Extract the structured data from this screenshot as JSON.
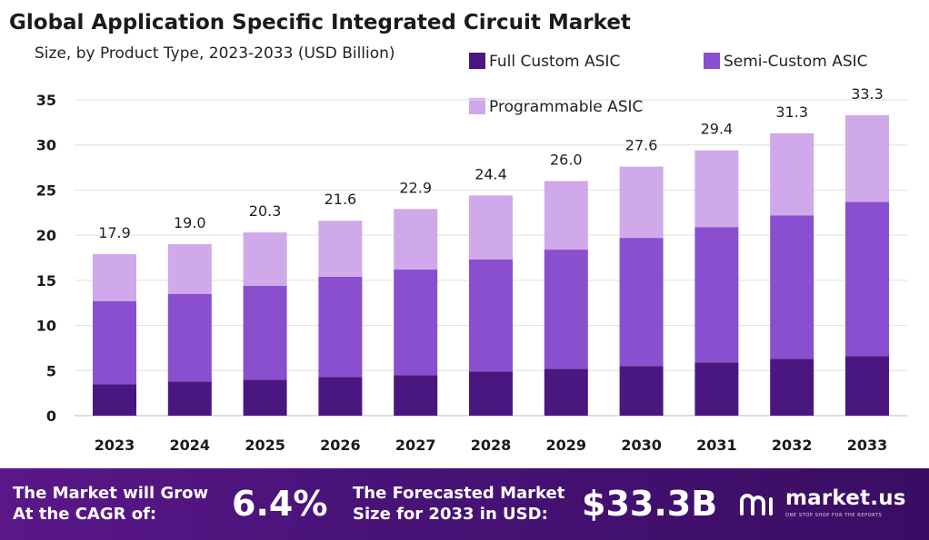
{
  "header": {
    "title": "Global Application Specific Integrated Circuit Market",
    "subtitle": "Size, by Product Type, 2023-2033 (USD Billion)"
  },
  "colors": {
    "full_custom": "#4a1780",
    "semi_custom": "#8a4fcf",
    "programmable": "#cfa9ea",
    "footer_bg": "#4a137a",
    "grid": "#e0e0e0"
  },
  "chart_data": {
    "type": "bar",
    "stacked": true,
    "categories": [
      "2023",
      "2024",
      "2025",
      "2026",
      "2027",
      "2028",
      "2029",
      "2030",
      "2031",
      "2032",
      "2033"
    ],
    "series": [
      {
        "name": "Full Custom ASIC",
        "color": "#4a1780",
        "values": [
          3.5,
          3.8,
          4.0,
          4.3,
          4.5,
          4.9,
          5.2,
          5.5,
          5.9,
          6.3,
          6.6
        ]
      },
      {
        "name": "Semi-Custom ASIC",
        "color": "#8a4fcf",
        "values": [
          9.2,
          9.7,
          10.4,
          11.1,
          11.7,
          12.4,
          13.2,
          14.2,
          15.0,
          15.9,
          17.1
        ]
      },
      {
        "name": "Programmable ASIC",
        "color": "#cfa9ea",
        "values": [
          5.2,
          5.5,
          5.9,
          6.2,
          6.7,
          7.1,
          7.6,
          7.9,
          8.5,
          9.1,
          9.6
        ]
      }
    ],
    "totals": [
      "17.9",
      "19.0",
      "20.3",
      "21.6",
      "22.9",
      "24.4",
      "26.0",
      "27.6",
      "29.4",
      "31.3",
      "33.3"
    ],
    "ylim": [
      0,
      35
    ],
    "yticks": [
      0,
      5,
      10,
      15,
      20,
      25,
      30,
      35
    ],
    "xlabel": "",
    "ylabel": "",
    "grid": true,
    "legend_position": "top-right"
  },
  "footer": {
    "cagr_label": "The Market will Grow\nAt the CAGR of:",
    "cagr_value": "6.4%",
    "forecast_label": "The Forecasted Market\nSize for 2033 in USD:",
    "forecast_value": "$33.3B",
    "brand_name": "market.us",
    "brand_tagline": "ONE STOP SHOP FOR THE REPORTS",
    "brand_icon": "market-us-logo-icon"
  }
}
